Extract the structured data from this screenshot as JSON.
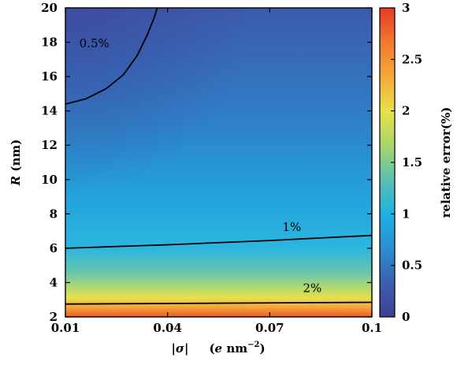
{
  "chart_data": {
    "type": "heatmap",
    "subtype": "filled-contour",
    "x": {
      "label_main": "|σ|",
      "label_unit_pre": "(",
      "label_unit_e": "e",
      "label_unit_nm": " nm",
      "label_unit_exp": "−2",
      "label_unit_post": ")",
      "range": [
        0.01,
        0.1
      ],
      "ticks": [
        0.01,
        0.04,
        0.07,
        0.1
      ],
      "tick_labels": [
        "0.01",
        "0.04",
        "0.07",
        "0.1"
      ]
    },
    "y": {
      "label_var": "R",
      "label_unit": " (nm)",
      "range": [
        2,
        20
      ],
      "ticks": [
        2,
        4,
        6,
        8,
        10,
        12,
        14,
        16,
        18,
        20
      ],
      "tick_labels": [
        "2",
        "4",
        "6",
        "8",
        "10",
        "12",
        "14",
        "16",
        "18",
        "20"
      ]
    },
    "colorbar": {
      "label": "relative error(%)",
      "range": [
        0,
        3
      ],
      "ticks": [
        0,
        0.5,
        1,
        1.5,
        2,
        2.5,
        3
      ],
      "tick_labels": [
        "0",
        "0.5",
        "1",
        "1.5",
        "2",
        "2.5",
        "3"
      ],
      "colors": [
        "#3f3f96",
        "#3c5fae",
        "#2a8fd2",
        "#1fb0e2",
        "#5cc0b0",
        "#a8d66a",
        "#e8e04a",
        "#f5a93a",
        "#f07a2f",
        "#e53a26"
      ]
    },
    "contours": [
      {
        "level": 0.5,
        "label": "0.5%",
        "points": [
          [
            0.01,
            14.4
          ],
          [
            0.016,
            14.7
          ],
          [
            0.022,
            15.3
          ],
          [
            0.027,
            16.1
          ],
          [
            0.031,
            17.2
          ],
          [
            0.034,
            18.4
          ],
          [
            0.036,
            19.4
          ],
          [
            0.037,
            20.0
          ]
        ]
      },
      {
        "level": 1,
        "label": "1%",
        "points": [
          [
            0.01,
            6.0
          ],
          [
            0.04,
            6.2
          ],
          [
            0.07,
            6.45
          ],
          [
            0.1,
            6.75
          ]
        ]
      },
      {
        "level": 2,
        "label": "2%",
        "points": [
          [
            0.01,
            2.75
          ],
          [
            0.1,
            2.85
          ]
        ]
      }
    ]
  }
}
